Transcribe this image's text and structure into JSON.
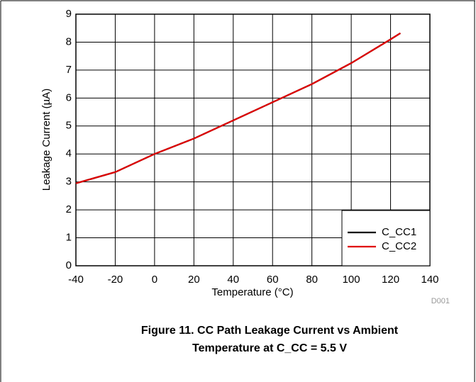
{
  "chart_data": {
    "type": "line",
    "title": [
      "Figure 11. CC Path Leakage Current vs Ambient",
      "Temperature at C_CC = 5.5 V"
    ],
    "xlabel": "Temperature (°C)",
    "ylabel": "Leakage Current (µA)",
    "annotation": "D001",
    "x": [
      -40,
      -20,
      0,
      20,
      40,
      60,
      80,
      100,
      120,
      125
    ],
    "series": [
      {
        "name": "C_CC1",
        "color": "#000000",
        "values": [
          2.95,
          3.35,
          4.0,
          4.55,
          5.2,
          5.85,
          6.5,
          7.25,
          8.1,
          8.32
        ]
      },
      {
        "name": "C_CC2",
        "color": "#e00000",
        "values": [
          2.95,
          3.35,
          4.0,
          4.55,
          5.2,
          5.85,
          6.5,
          7.25,
          8.1,
          8.32
        ]
      }
    ],
    "xlim": [
      -40,
      140
    ],
    "xticks": [
      -40,
      -20,
      0,
      20,
      40,
      60,
      80,
      100,
      120,
      140
    ],
    "ylim": [
      0,
      9
    ],
    "yticks": [
      0,
      1,
      2,
      3,
      4,
      5,
      6,
      7,
      8,
      9
    ],
    "grid": true,
    "legend": "lower right"
  }
}
